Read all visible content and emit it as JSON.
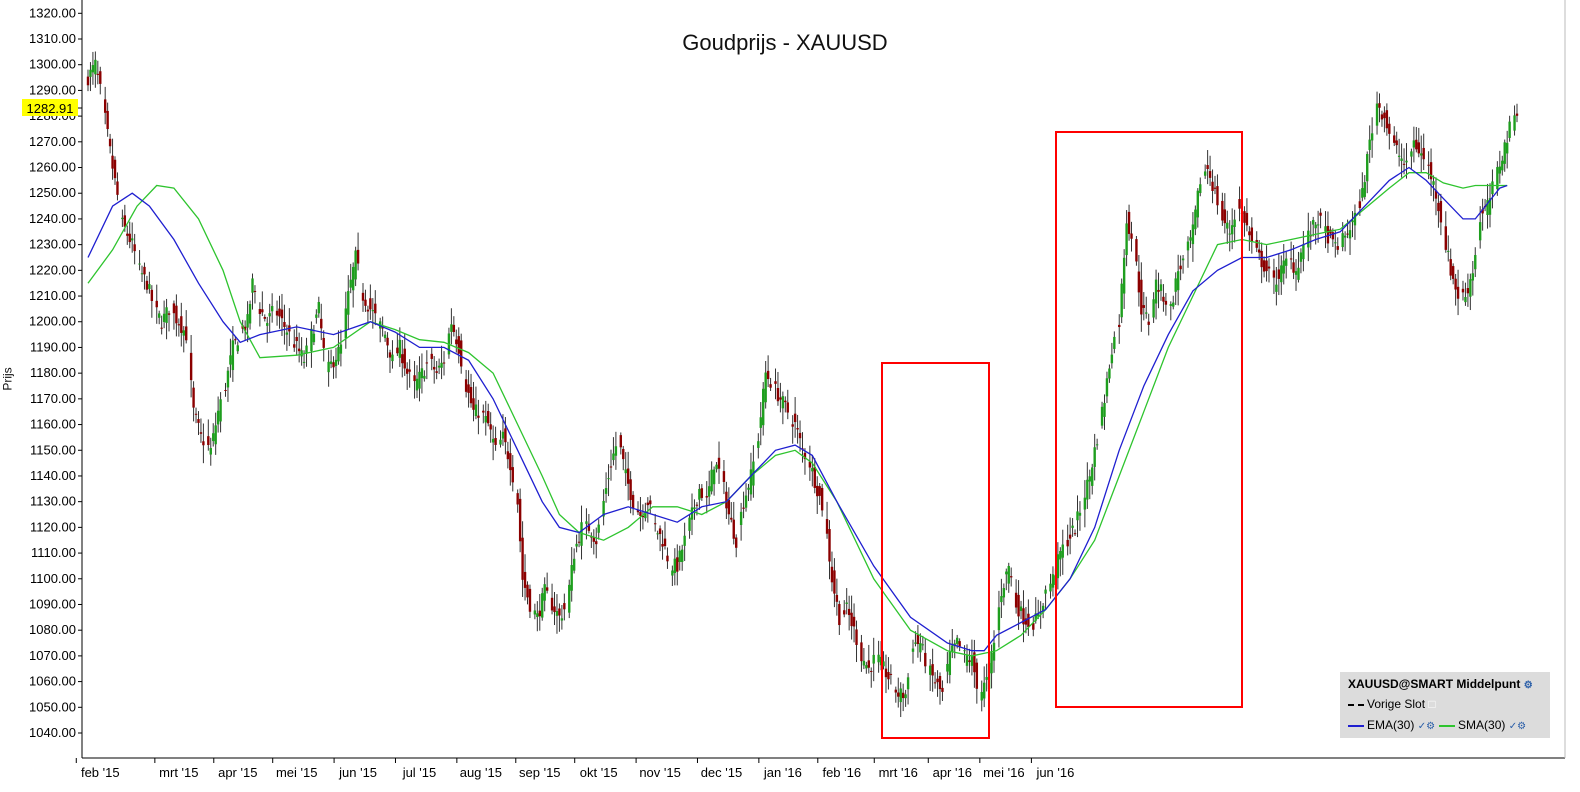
{
  "chart_data": {
    "type": "candlestick",
    "title": "Goudprijs - XAUUSD",
    "ylabel": "Prijs",
    "ylim": [
      1035,
      1325
    ],
    "y_ticks": [
      "1040.00",
      "1050.00",
      "1060.00",
      "1070.00",
      "1080.00",
      "1090.00",
      "1100.00",
      "1110.00",
      "1120.00",
      "1130.00",
      "1140.00",
      "1150.00",
      "1160.00",
      "1170.00",
      "1180.00",
      "1190.00",
      "1200.00",
      "1210.00",
      "1220.00",
      "1230.00",
      "1240.00",
      "1250.00",
      "1260.00",
      "1270.00",
      "1280.00",
      "1290.00",
      "1300.00",
      "1310.00",
      "1320.00"
    ],
    "x_months": [
      "feb '15",
      "mrt '15",
      "apr '15",
      "mei '15",
      "jun '15",
      "jul '15",
      "aug '15",
      "sep '15",
      "okt '15",
      "nov '15",
      "dec '15",
      "jan '16",
      "feb '16",
      "mrt '16",
      "apr '16",
      "mei '16",
      "jun '16"
    ],
    "last_price": "1282.91",
    "close_path": [
      [
        0,
        1295
      ],
      [
        3,
        1300
      ],
      [
        6,
        1285
      ],
      [
        10,
        1260
      ],
      [
        14,
        1238
      ],
      [
        18,
        1230
      ],
      [
        21,
        1220
      ],
      [
        24,
        1215
      ],
      [
        27,
        1205
      ],
      [
        30,
        1200
      ],
      [
        33,
        1205
      ],
      [
        37,
        1200
      ],
      [
        40,
        1195
      ],
      [
        43,
        1165
      ],
      [
        46,
        1155
      ],
      [
        50,
        1150
      ],
      [
        53,
        1165
      ],
      [
        56,
        1175
      ],
      [
        59,
        1190
      ],
      [
        62,
        1195
      ],
      [
        65,
        1200
      ],
      [
        67,
        1215
      ],
      [
        70,
        1205
      ],
      [
        73,
        1200
      ],
      [
        76,
        1205
      ],
      [
        79,
        1200
      ],
      [
        82,
        1195
      ],
      [
        85,
        1190
      ],
      [
        88,
        1185
      ],
      [
        91,
        1195
      ],
      [
        94,
        1205
      ],
      [
        97,
        1180
      ],
      [
        100,
        1185
      ],
      [
        103,
        1190
      ],
      [
        106,
        1210
      ],
      [
        109,
        1225
      ],
      [
        112,
        1210
      ],
      [
        115,
        1205
      ],
      [
        118,
        1200
      ],
      [
        121,
        1195
      ],
      [
        124,
        1185
      ],
      [
        127,
        1190
      ],
      [
        130,
        1180
      ],
      [
        133,
        1175
      ],
      [
        136,
        1180
      ],
      [
        139,
        1185
      ],
      [
        142,
        1180
      ],
      [
        145,
        1185
      ],
      [
        148,
        1200
      ],
      [
        151,
        1190
      ],
      [
        154,
        1175
      ],
      [
        157,
        1165
      ],
      [
        160,
        1165
      ],
      [
        163,
        1160
      ],
      [
        166,
        1150
      ],
      [
        169,
        1155
      ],
      [
        172,
        1145
      ],
      [
        175,
        1130
      ],
      [
        177,
        1100
      ],
      [
        180,
        1090
      ],
      [
        183,
        1085
      ],
      [
        186,
        1095
      ],
      [
        189,
        1090
      ],
      [
        192,
        1085
      ],
      [
        195,
        1090
      ],
      [
        198,
        1110
      ],
      [
        201,
        1120
      ],
      [
        204,
        1120
      ],
      [
        207,
        1115
      ],
      [
        210,
        1130
      ],
      [
        213,
        1145
      ],
      [
        216,
        1155
      ],
      [
        219,
        1140
      ],
      [
        222,
        1130
      ],
      [
        225,
        1125
      ],
      [
        228,
        1130
      ],
      [
        231,
        1120
      ],
      [
        234,
        1115
      ],
      [
        237,
        1105
      ],
      [
        240,
        1105
      ],
      [
        243,
        1115
      ],
      [
        246,
        1125
      ],
      [
        249,
        1135
      ],
      [
        252,
        1130
      ],
      [
        255,
        1145
      ],
      [
        258,
        1140
      ],
      [
        261,
        1125
      ],
      [
        264,
        1115
      ],
      [
        267,
        1130
      ],
      [
        270,
        1140
      ],
      [
        273,
        1155
      ],
      [
        276,
        1180
      ],
      [
        279,
        1175
      ],
      [
        282,
        1170
      ],
      [
        285,
        1165
      ],
      [
        288,
        1160
      ],
      [
        291,
        1150
      ],
      [
        294,
        1145
      ],
      [
        297,
        1135
      ],
      [
        300,
        1125
      ],
      [
        303,
        1100
      ],
      [
        306,
        1085
      ],
      [
        309,
        1088
      ],
      [
        312,
        1080
      ],
      [
        315,
        1070
      ],
      [
        318,
        1065
      ],
      [
        321,
        1070
      ],
      [
        324,
        1065
      ],
      [
        327,
        1060
      ],
      [
        330,
        1055
      ],
      [
        333,
        1055
      ],
      [
        336,
        1075
      ],
      [
        339,
        1075
      ],
      [
        342,
        1065
      ],
      [
        345,
        1060
      ],
      [
        348,
        1055
      ],
      [
        351,
        1070
      ],
      [
        354,
        1075
      ],
      [
        357,
        1070
      ],
      [
        360,
        1068
      ],
      [
        363,
        1055
      ],
      [
        366,
        1060
      ],
      [
        369,
        1075
      ],
      [
        372,
        1095
      ],
      [
        375,
        1105
      ],
      [
        378,
        1090
      ],
      [
        381,
        1085
      ],
      [
        384,
        1082
      ],
      [
        387,
        1085
      ],
      [
        390,
        1095
      ],
      [
        393,
        1100
      ],
      [
        396,
        1110
      ],
      [
        399,
        1115
      ],
      [
        402,
        1120
      ],
      [
        405,
        1130
      ],
      [
        408,
        1140
      ],
      [
        411,
        1155
      ],
      [
        414,
        1170
      ],
      [
        417,
        1190
      ],
      [
        420,
        1200
      ],
      [
        423,
        1240
      ],
      [
        426,
        1230
      ],
      [
        429,
        1205
      ],
      [
        432,
        1200
      ],
      [
        435,
        1215
      ],
      [
        438,
        1210
      ],
      [
        441,
        1205
      ],
      [
        444,
        1220
      ],
      [
        447,
        1225
      ],
      [
        450,
        1235
      ],
      [
        453,
        1255
      ],
      [
        456,
        1260
      ],
      [
        459,
        1250
      ],
      [
        462,
        1240
      ],
      [
        465,
        1235
      ],
      [
        468,
        1245
      ],
      [
        471,
        1240
      ],
      [
        474,
        1230
      ],
      [
        477,
        1225
      ],
      [
        480,
        1220
      ],
      [
        483,
        1215
      ],
      [
        486,
        1220
      ],
      [
        489,
        1225
      ],
      [
        492,
        1220
      ],
      [
        495,
        1230
      ],
      [
        498,
        1235
      ],
      [
        501,
        1240
      ],
      [
        504,
        1235
      ],
      [
        507,
        1230
      ],
      [
        510,
        1230
      ],
      [
        513,
        1235
      ],
      [
        516,
        1240
      ],
      [
        519,
        1250
      ],
      [
        522,
        1270
      ],
      [
        525,
        1285
      ],
      [
        528,
        1280
      ],
      [
        531,
        1270
      ],
      [
        534,
        1265
      ],
      [
        537,
        1260
      ],
      [
        540,
        1270
      ],
      [
        543,
        1265
      ],
      [
        546,
        1260
      ],
      [
        549,
        1250
      ],
      [
        552,
        1235
      ],
      [
        555,
        1220
      ],
      [
        558,
        1210
      ],
      [
        561,
        1210
      ],
      [
        564,
        1220
      ],
      [
        567,
        1240
      ],
      [
        570,
        1245
      ],
      [
        573,
        1255
      ],
      [
        576,
        1265
      ],
      [
        579,
        1275
      ],
      [
        582,
        1283
      ]
    ],
    "ema30": [
      [
        0,
        1225
      ],
      [
        10,
        1245
      ],
      [
        18,
        1250
      ],
      [
        25,
        1245
      ],
      [
        35,
        1232
      ],
      [
        45,
        1215
      ],
      [
        55,
        1200
      ],
      [
        62,
        1192
      ],
      [
        70,
        1195
      ],
      [
        85,
        1198
      ],
      [
        100,
        1195
      ],
      [
        115,
        1200
      ],
      [
        125,
        1196
      ],
      [
        135,
        1190
      ],
      [
        145,
        1190
      ],
      [
        155,
        1185
      ],
      [
        165,
        1170
      ],
      [
        175,
        1150
      ],
      [
        185,
        1130
      ],
      [
        192,
        1120
      ],
      [
        200,
        1118
      ],
      [
        210,
        1125
      ],
      [
        220,
        1128
      ],
      [
        230,
        1125
      ],
      [
        240,
        1122
      ],
      [
        250,
        1128
      ],
      [
        260,
        1130
      ],
      [
        270,
        1140
      ],
      [
        280,
        1150
      ],
      [
        288,
        1152
      ],
      [
        295,
        1148
      ],
      [
        305,
        1130
      ],
      [
        320,
        1105
      ],
      [
        335,
        1085
      ],
      [
        350,
        1075
      ],
      [
        360,
        1072
      ],
      [
        365,
        1072
      ],
      [
        370,
        1078
      ],
      [
        380,
        1083
      ],
      [
        390,
        1088
      ],
      [
        400,
        1100
      ],
      [
        410,
        1120
      ],
      [
        420,
        1150
      ],
      [
        430,
        1175
      ],
      [
        440,
        1195
      ],
      [
        450,
        1212
      ],
      [
        460,
        1220
      ],
      [
        470,
        1225
      ],
      [
        480,
        1225
      ],
      [
        490,
        1228
      ],
      [
        500,
        1232
      ],
      [
        510,
        1235
      ],
      [
        520,
        1245
      ],
      [
        530,
        1255
      ],
      [
        538,
        1260
      ],
      [
        545,
        1255
      ],
      [
        552,
        1248
      ],
      [
        560,
        1240
      ],
      [
        565,
        1240
      ],
      [
        570,
        1246
      ],
      [
        575,
        1252
      ],
      [
        578,
        1253
      ]
    ],
    "sma30": [
      [
        0,
        1215
      ],
      [
        10,
        1228
      ],
      [
        20,
        1245
      ],
      [
        28,
        1253
      ],
      [
        35,
        1252
      ],
      [
        45,
        1240
      ],
      [
        55,
        1220
      ],
      [
        62,
        1200
      ],
      [
        70,
        1186
      ],
      [
        85,
        1187
      ],
      [
        100,
        1190
      ],
      [
        115,
        1200
      ],
      [
        125,
        1197
      ],
      [
        135,
        1193
      ],
      [
        145,
        1192
      ],
      [
        155,
        1188
      ],
      [
        165,
        1180
      ],
      [
        175,
        1160
      ],
      [
        185,
        1140
      ],
      [
        192,
        1125
      ],
      [
        200,
        1118
      ],
      [
        210,
        1115
      ],
      [
        220,
        1120
      ],
      [
        230,
        1128
      ],
      [
        240,
        1128
      ],
      [
        250,
        1125
      ],
      [
        260,
        1130
      ],
      [
        270,
        1140
      ],
      [
        280,
        1148
      ],
      [
        288,
        1150
      ],
      [
        295,
        1145
      ],
      [
        305,
        1130
      ],
      [
        320,
        1100
      ],
      [
        335,
        1080
      ],
      [
        350,
        1072
      ],
      [
        360,
        1070
      ],
      [
        370,
        1072
      ],
      [
        380,
        1078
      ],
      [
        390,
        1088
      ],
      [
        400,
        1100
      ],
      [
        410,
        1115
      ],
      [
        420,
        1140
      ],
      [
        430,
        1165
      ],
      [
        440,
        1190
      ],
      [
        450,
        1210
      ],
      [
        460,
        1230
      ],
      [
        470,
        1232
      ],
      [
        480,
        1230
      ],
      [
        490,
        1232
      ],
      [
        500,
        1234
      ],
      [
        510,
        1236
      ],
      [
        520,
        1244
      ],
      [
        530,
        1252
      ],
      [
        538,
        1258
      ],
      [
        545,
        1258
      ],
      [
        552,
        1254
      ],
      [
        560,
        1252
      ],
      [
        565,
        1253
      ],
      [
        570,
        1253
      ],
      [
        578,
        1253
      ]
    ]
  },
  "legend": {
    "title": "XAUUSD@SMART Middelpunt",
    "prev_close": "Vorige Slot",
    "ema_label": "EMA(30)",
    "sma_label": "SMA(30)"
  },
  "colors": {
    "up": "#1e9e1e",
    "down": "#8b0000",
    "ema": "#1f1fd0",
    "sma": "#2ec42e",
    "box": "#ff0000",
    "last_price_bg": "#ffff00"
  }
}
